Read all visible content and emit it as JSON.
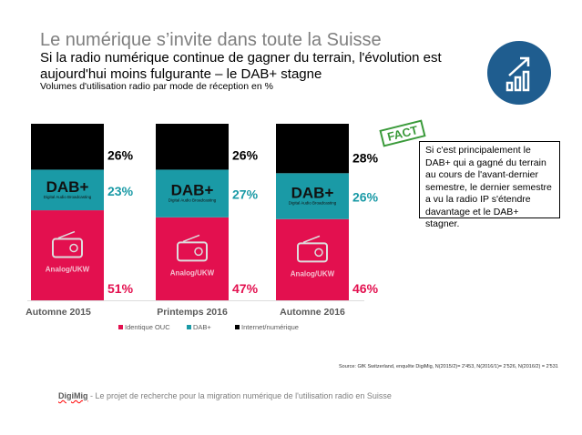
{
  "title": "Le numérique s’invite dans toute la Suisse",
  "subtitle": "Si la radio numérique continue de gagner du terrain, l'évolution est aujourd'hui moins fulgurante – le DAB+ stagne",
  "subtitle2": "Volumes d'utilisation radio par mode de réception en %",
  "badge_icon": "growth-chart-icon",
  "fact": {
    "stamp": "FACT",
    "text": "Si c'est principalement le DAB+ qui a gagné du terrain au cours de l'avant-dernier semestre, le dernier semestre a vu la radio IP s'étendre davantage et le DAB+ stagner."
  },
  "source": "Source: GfK Switzerland, enquête DigiMig, N(2015/2)= 2'453, N(2016/1)= 2'526, N(2016/2) = 2'531",
  "footer": {
    "brand": "DigiMig",
    "text": " - Le projet de recherche pour la migration numérique de l'utilisation radio en Suisse"
  },
  "chart_data": {
    "type": "bar",
    "stacked": true,
    "categories": [
      "Automne 2015",
      "Printemps 2016",
      "Automne 2016"
    ],
    "series": [
      {
        "name": "Identique OUC",
        "color": "#e3104f",
        "values": [
          51,
          47,
          46
        ],
        "segment_label": "Analog/UKW"
      },
      {
        "name": "DAB+",
        "color": "#1a9aa6",
        "values": [
          23,
          27,
          26
        ],
        "segment_label": "DAB+",
        "segment_sublabel": "Digital Audio Broadcasting"
      },
      {
        "name": "Internet/numérique",
        "color": "#000000",
        "values": [
          26,
          26,
          28
        ]
      }
    ],
    "label_colors": [
      "#e3104f",
      "#1a9aa6",
      "#000000"
    ],
    "ylim": [
      0,
      100
    ],
    "legend": "bottom"
  }
}
